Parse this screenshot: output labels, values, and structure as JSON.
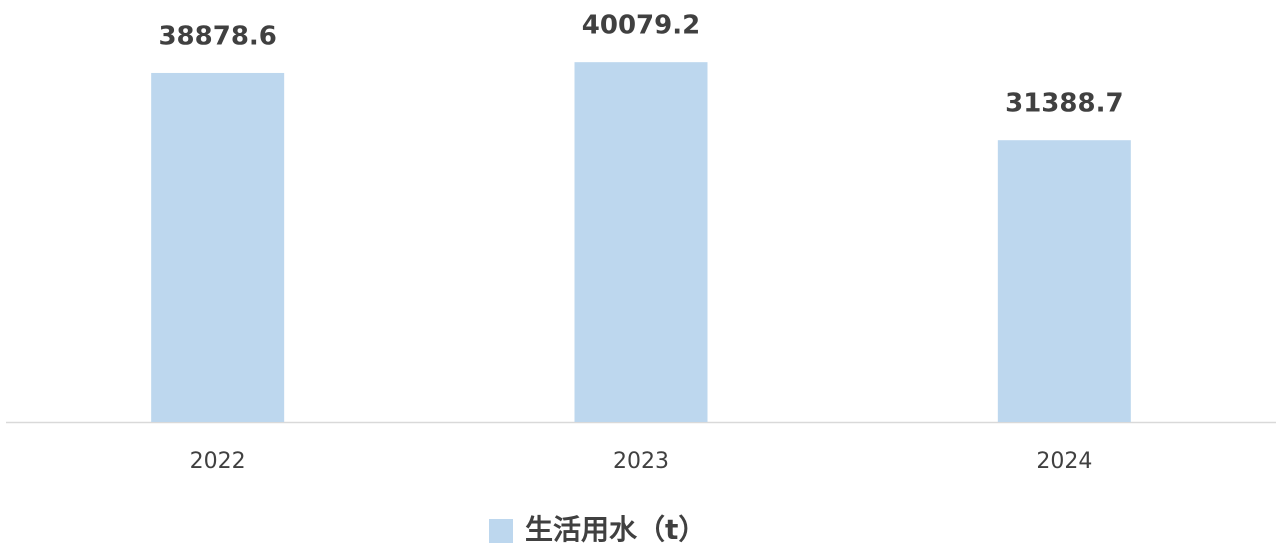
{
  "chart_data": {
    "type": "bar",
    "categories": [
      "2022",
      "2023",
      "2024"
    ],
    "series": [
      {
        "name": "生活用水（t）",
        "color": "#bdd7ee",
        "values": [
          38878.6,
          40079.2,
          31388.7
        ]
      }
    ],
    "ylim": [
      0,
      45000
    ],
    "legend": "bottom"
  }
}
